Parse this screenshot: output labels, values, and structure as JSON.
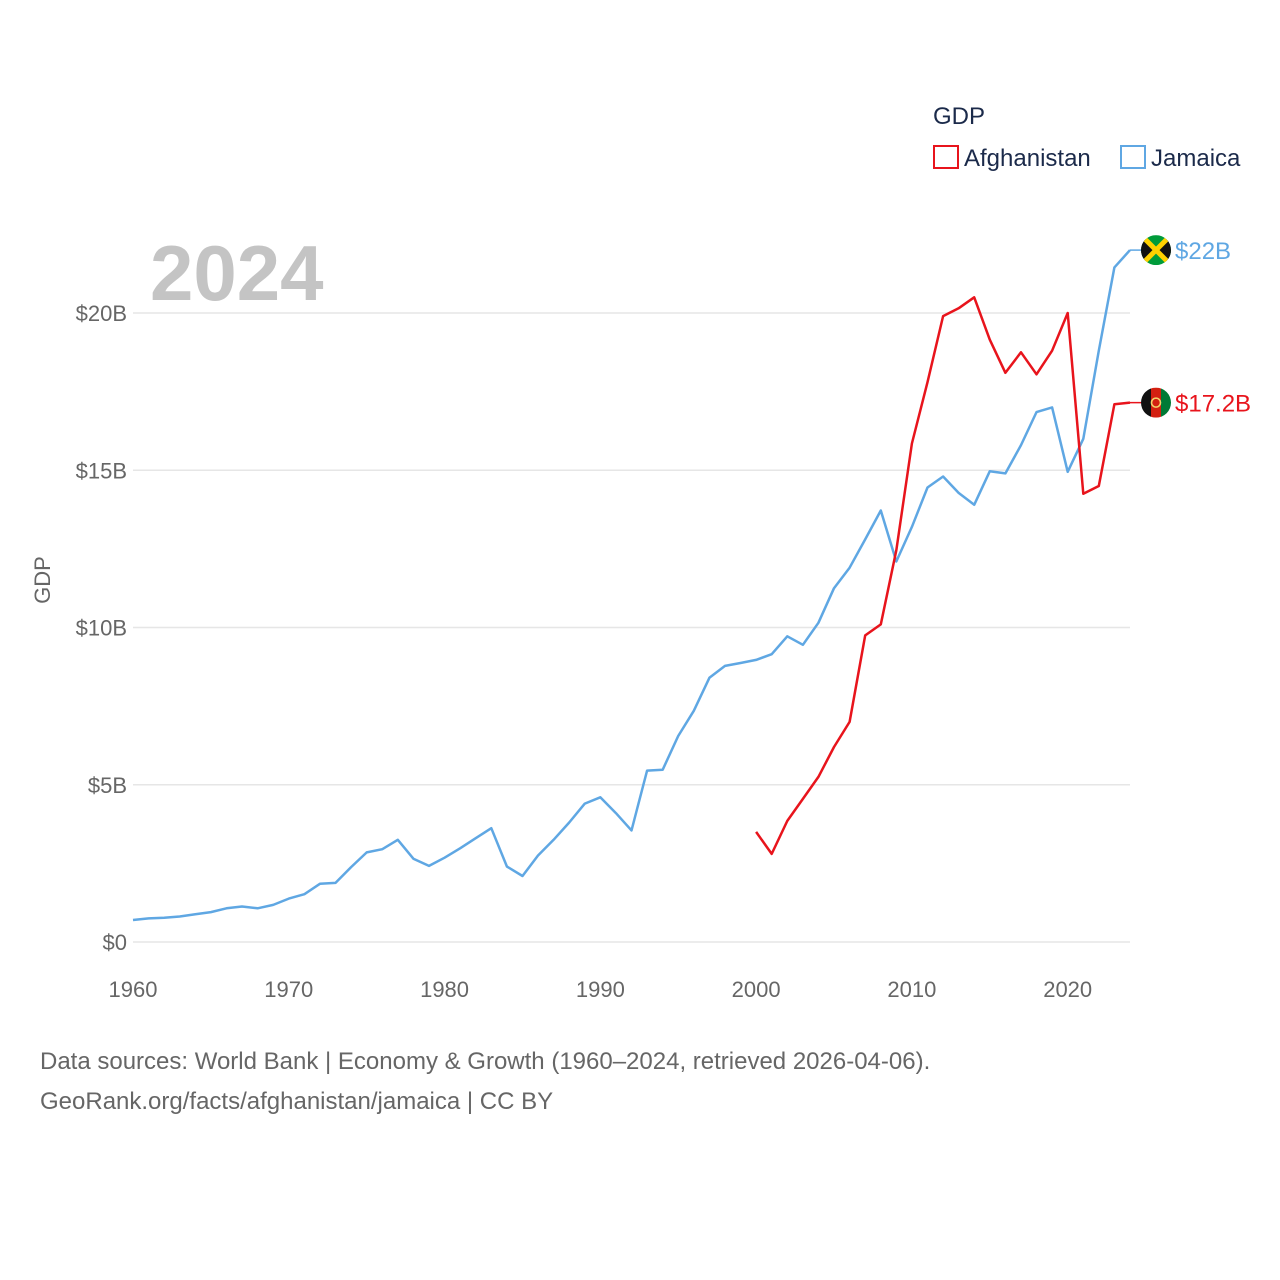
{
  "chart_data": {
    "type": "line",
    "title": "GDP",
    "ylabel": "GDP",
    "xlabel": "",
    "year_label": "2024",
    "xlim": [
      1960,
      2024
    ],
    "ylim": [
      0,
      22
    ],
    "x_ticks": [
      1960,
      1970,
      1980,
      1990,
      2000,
      2010,
      2020
    ],
    "x_tick_labels": [
      "1960",
      "1970",
      "1980",
      "1990",
      "2000",
      "2010",
      "2020"
    ],
    "y_ticks": [
      0,
      5,
      10,
      15,
      20
    ],
    "y_tick_labels": [
      "$0",
      "$5B",
      "$10B",
      "$15B",
      "$20B"
    ],
    "grid": true,
    "legend_position": "top-right",
    "series": [
      {
        "name": "Afghanistan",
        "color": "#e8141c",
        "end_label": "$17.2B",
        "flag": "afghanistan-flag",
        "x": [
          2000,
          2001,
          2002,
          2003,
          2004,
          2005,
          2006,
          2007,
          2008,
          2009,
          2010,
          2011,
          2012,
          2013,
          2014,
          2015,
          2016,
          2017,
          2018,
          2019,
          2020,
          2021,
          2022,
          2023,
          2024
        ],
        "values": [
          3.5,
          2.8,
          3.85,
          4.55,
          5.25,
          6.2,
          7.0,
          9.75,
          10.1,
          12.45,
          15.85,
          17.8,
          19.9,
          20.15,
          20.5,
          19.15,
          18.1,
          18.75,
          18.05,
          18.8,
          20.0,
          14.25,
          14.5,
          17.1,
          17.15
        ]
      },
      {
        "name": "Jamaica",
        "color": "#5fa7e3",
        "end_label": "$22B",
        "flag": "jamaica-flag",
        "x": [
          1960,
          1961,
          1962,
          1963,
          1964,
          1965,
          1966,
          1967,
          1968,
          1969,
          1970,
          1971,
          1972,
          1973,
          1974,
          1975,
          1976,
          1977,
          1978,
          1979,
          1980,
          1981,
          1982,
          1983,
          1984,
          1985,
          1986,
          1987,
          1988,
          1989,
          1990,
          1991,
          1992,
          1993,
          1994,
          1995,
          1996,
          1997,
          1998,
          1999,
          2000,
          2001,
          2002,
          2003,
          2004,
          2005,
          2006,
          2007,
          2008,
          2009,
          2010,
          2011,
          2012,
          2013,
          2014,
          2015,
          2016,
          2017,
          2018,
          2019,
          2020,
          2021,
          2022,
          2023,
          2024
        ],
        "values": [
          0.7,
          0.75,
          0.77,
          0.81,
          0.88,
          0.95,
          1.07,
          1.13,
          1.07,
          1.18,
          1.38,
          1.52,
          1.85,
          1.88,
          2.38,
          2.85,
          2.95,
          3.25,
          2.65,
          2.42,
          2.68,
          2.98,
          3.3,
          3.62,
          2.4,
          2.1,
          2.75,
          3.25,
          3.8,
          4.4,
          4.6,
          4.1,
          3.55,
          5.45,
          5.48,
          6.55,
          7.35,
          8.4,
          8.78,
          8.87,
          8.97,
          9.15,
          9.72,
          9.45,
          10.15,
          11.25,
          11.9,
          12.8,
          13.72,
          12.1,
          13.2,
          14.45,
          14.8,
          14.28,
          13.9,
          14.97,
          14.9,
          15.8,
          16.85,
          17.0,
          14.95,
          16.0,
          18.8,
          21.45,
          22.0
        ]
      }
    ]
  },
  "legend": {
    "title": "GDP",
    "items": [
      "Afghanistan",
      "Jamaica"
    ]
  },
  "source": {
    "line1": "Data sources: World Bank | Economy & Growth (1960–2024, retrieved 2026-04-06).",
    "line2": "GeoRank.org/facts/afghanistan/jamaica | CC BY"
  }
}
